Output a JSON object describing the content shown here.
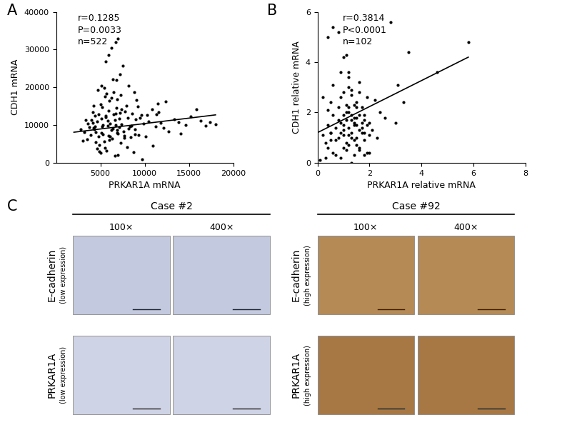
{
  "chart_data": [
    {
      "type": "scatter",
      "panel_label": "A",
      "x_label": "PRKAR1A mRNA",
      "y_label": "CDH1 mRNA",
      "annotations": [
        "r=0.1285",
        "P=0.0033",
        "n=522"
      ],
      "color": "#000000",
      "marker": "o",
      "x": [
        4500,
        5200,
        6100,
        7000,
        5600,
        4800,
        6600,
        8200,
        3900,
        5900,
        7400,
        6300,
        5100,
        4200,
        8900,
        9600,
        5400,
        6800,
        7700,
        4600,
        5800,
        6900,
        3500,
        10400,
        11200,
        5000,
        6200,
        7300,
        8600,
        4400,
        5300,
        6000,
        7100,
        4900,
        3200,
        8100,
        9300,
        5700,
        6500,
        4100,
        10800,
        12100,
        5500,
        6700,
        7900,
        4300,
        5100,
        8400,
        9900,
        6400,
        13300,
        12700,
        11600,
        14600,
        16900,
        17400,
        15800,
        5600,
        6800,
        7500,
        6700,
        6200,
        4700,
        7200,
        8800,
        5900,
        7000,
        4000,
        3700,
        9100,
        2800,
        3300,
        4500,
        5200,
        6100,
        7600,
        8300,
        9500,
        10100,
        11800,
        6600,
        5000,
        5700,
        7000,
        4600,
        8000,
        6900,
        5400,
        7800,
        9700,
        5900,
        6400,
        7100,
        4800,
        5300,
        6000,
        8500,
        7300,
        4200,
        6700,
        15200,
        14100,
        12400,
        10900,
        13800,
        11300,
        9200,
        8700,
        16300,
        18000,
        3000,
        3600,
        4100,
        5500,
        6500,
        7400,
        8200,
        9000,
        4900,
        5800,
        6200,
        7700,
        5100,
        6900,
        4400,
        5600,
        7200,
        8900,
        10300,
        11500
      ],
      "y": [
        8200,
        9600,
        10400,
        7800,
        12100,
        6900,
        11300,
        9100,
        7400,
        13800,
        10200,
        6400,
        11800,
        9300,
        8800,
        12600,
        5700,
        14500,
        7100,
        10900,
        9900,
        8600,
        6200,
        11000,
        9700,
        15600,
        17200,
        5200,
        13100,
        12400,
        7600,
        16400,
        9400,
        4800,
        8100,
        11900,
        7300,
        18300,
        12800,
        10600,
        14200,
        9200,
        3900,
        10100,
        15100,
        8800,
        20400,
        6800,
        10300,
        22100,
        11500,
        8400,
        13400,
        10100,
        9900,
        10800,
        14100,
        26800,
        21900,
        25700,
        32000,
        30500,
        19200,
        23400,
        18800,
        28600,
        33000,
        11400,
        9500,
        16700,
        8900,
        11300,
        5500,
        14700,
        7000,
        8300,
        9600,
        12000,
        6900,
        10500,
        1800,
        2600,
        3200,
        2100,
        3700,
        4100,
        16900,
        19800,
        13600,
        1000,
        7200,
        9000,
        11700,
        12900,
        10000,
        6100,
        9800,
        17900,
        15200,
        13000,
        12300,
        7800,
        16200,
        4600,
        10700,
        12900,
        14900,
        2800,
        11200,
        10200,
        5900,
        10400,
        13500,
        17600,
        18700,
        14100,
        20500,
        11600,
        3000,
        11100,
        8700,
        6700,
        7900,
        8000,
        9700,
        12500,
        13300,
        7600,
        12700,
        15700
      ],
      "fit": {
        "x": [
          2000,
          18000
        ],
        "y": [
          8100,
          12700
        ],
        "color": "#000000"
      },
      "xlim": [
        0,
        20000
      ],
      "xticks": [
        5000,
        10000,
        15000,
        20000
      ],
      "ylim": [
        0,
        40000
      ],
      "yticks": [
        0,
        10000,
        20000,
        30000,
        40000
      ]
    },
    {
      "type": "scatter",
      "panel_label": "B",
      "x_label": "PRKAR1A relative mRNA",
      "y_label": "CDH1 relative mRNA",
      "annotations": [
        "r=0.3814",
        "P<0.0001",
        "n=102"
      ],
      "color": "#000000",
      "marker": "o",
      "x": [
        0.2,
        0.5,
        0.8,
        1.0,
        1.2,
        1.4,
        0.3,
        0.6,
        0.9,
        1.1,
        1.3,
        1.5,
        1.7,
        1.9,
        0.4,
        0.7,
        1.0,
        1.2,
        1.6,
        1.8,
        0.1,
        0.3,
        0.5,
        0.8,
        1.1,
        1.3,
        1.5,
        1.7,
        2.0,
        2.2,
        0.9,
        1.0,
        1.1,
        1.2,
        1.3,
        1.4,
        1.6,
        0.6,
        0.8,
        0.4,
        1.2,
        1.4,
        1.6,
        1.8,
        2.4,
        2.8,
        3.0,
        3.3,
        3.5,
        4.6,
        5.8,
        3.1,
        0.5,
        0.7,
        1.0,
        1.2,
        1.4,
        1.5,
        1.8,
        2.1,
        0.9,
        1.1,
        1.3,
        1.5,
        0.4,
        0.6,
        1.0,
        1.2,
        1.4,
        1.7,
        1.9,
        2.3,
        2.6,
        0.2,
        0.7,
        0.9,
        1.1,
        1.3,
        1.6,
        1.9,
        0.8,
        1.0,
        1.2,
        1.4,
        1.6,
        1.8,
        2.0,
        0.5,
        1.1,
        1.5,
        1.3,
        1.7,
        0.6,
        0.9,
        1.2,
        1.5,
        1.8,
        0.4,
        1.0,
        1.6,
        2.0,
        1.3
      ],
      "y": [
        2.6,
        2.4,
        1.0,
        0.6,
        1.4,
        1.8,
        0.2,
        0.4,
        1.6,
        2.0,
        1.2,
        1.0,
        1.6,
        2.6,
        1.5,
        0.9,
        1.3,
        3.0,
        0.5,
        1.9,
        0.1,
        0.8,
        1.2,
        2.2,
        1.7,
        2.7,
        2.2,
        1.4,
        1.1,
        2.5,
        3.6,
        4.2,
        4.3,
        3.4,
        1.9,
        1.6,
        3.2,
        5.4,
        5.2,
        5.0,
        0.7,
        0.3,
        2.8,
        1.7,
        2.0,
        5.6,
        1.6,
        2.4,
        4.4,
        3.6,
        4.8,
        3.1,
        0.9,
        0.3,
        1.9,
        1.1,
        0.9,
        2.4,
        0.3,
        1.3,
        0.2,
        0.5,
        0.0,
        0.7,
        2.1,
        3.1,
        2.8,
        3.6,
        1.5,
        1.2,
        1.5,
        1.0,
        1.8,
        1.1,
        1.4,
        2.6,
        2.3,
        1.0,
        1.9,
        0.4,
        1.7,
        1.5,
        2.0,
        2.3,
        1.3,
        1.2,
        1.6,
        1.2,
        0.8,
        1.5,
        1.7,
        2.2,
        1.9,
        1.2,
        2.2,
        1.8,
        0.9,
        0.6,
        1.1,
        0.6,
        0.4,
        2.9
      ],
      "fit": {
        "x": [
          0,
          5.8
        ],
        "y": [
          1.2,
          4.2
        ],
        "color": "#000000"
      },
      "xlim": [
        0,
        8
      ],
      "xticks": [
        0,
        2,
        4,
        6,
        8
      ],
      "ylim": [
        0,
        6
      ],
      "yticks": [
        0,
        2,
        4,
        6
      ]
    }
  ],
  "ihc": {
    "panel_label": "C",
    "cases": [
      {
        "title": "Case #2",
        "magnifications": [
          "100×",
          "400×"
        ],
        "rows": [
          {
            "stain": "E-cadherin",
            "expression": "(low expression)"
          },
          {
            "stain": "PRKAR1A",
            "expression": "(low expression)"
          }
        ]
      },
      {
        "title": "Case #92",
        "magnifications": [
          "100×",
          "400×"
        ],
        "rows": [
          {
            "stain": "E-cadherin",
            "expression": "(high expression)"
          },
          {
            "stain": "PRKAR1A",
            "expression": "(high expression)"
          }
        ]
      }
    ]
  }
}
